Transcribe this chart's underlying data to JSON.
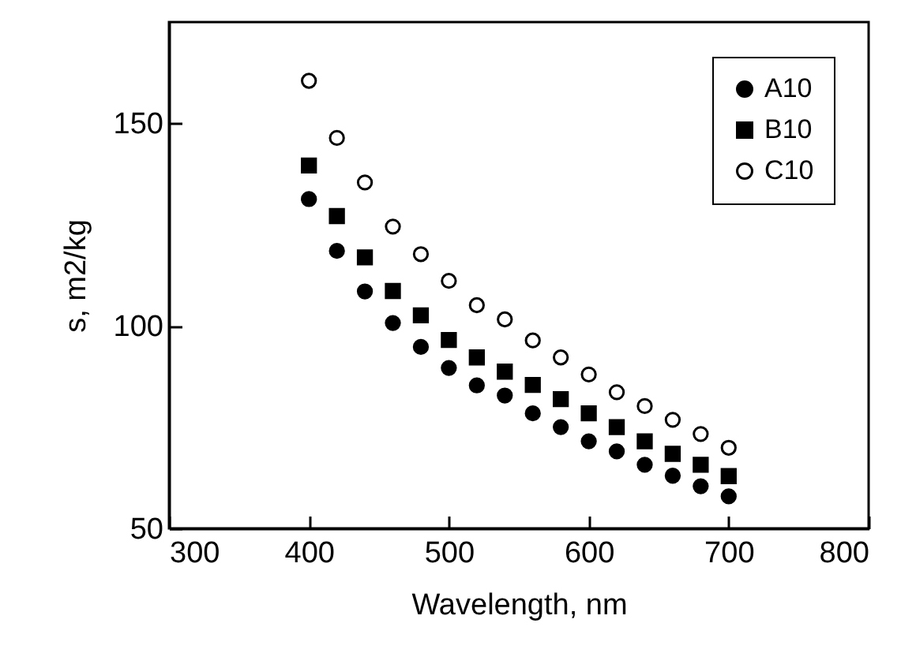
{
  "chart_data": {
    "type": "scatter",
    "xlabel": "Wavelength, nm",
    "ylabel": "s, m2/kg",
    "x": [
      400,
      420,
      440,
      460,
      480,
      500,
      520,
      540,
      560,
      580,
      600,
      620,
      640,
      660,
      680,
      700
    ],
    "series": [
      {
        "name": "A10",
        "color": "#000000",
        "marker": "circle",
        "values": [
          131.3,
          118.5,
          108.5,
          100.7,
          94.8,
          89.6,
          85.3,
          82.8,
          78.4,
          75,
          71.5,
          69,
          65.7,
          63,
          60.4,
          57.9
        ]
      },
      {
        "name": "B10",
        "color": "#000000",
        "marker": "square",
        "values": [
          139.6,
          127.1,
          116.9,
          108.6,
          102.6,
          96.5,
          92.2,
          88.7,
          85.4,
          81.9,
          78.4,
          75,
          71.5,
          68.4,
          65.7,
          62.9
        ]
      },
      {
        "name": "C10",
        "color": "#ffffff",
        "marker": "circle",
        "values": [
          160.5,
          146.4,
          135.4,
          124.5,
          117.7,
          111.1,
          105.1,
          101.6,
          96.4,
          92.2,
          88,
          83.6,
          80.2,
          76.8,
          73.3,
          69.9
        ]
      }
    ],
    "xlim": [
      300,
      800
    ],
    "xticks": [
      300,
      400,
      500,
      600,
      700,
      800
    ],
    "ylim": [
      50,
      175
    ],
    "yticks": [
      50,
      100,
      150
    ],
    "legend": "top right"
  }
}
